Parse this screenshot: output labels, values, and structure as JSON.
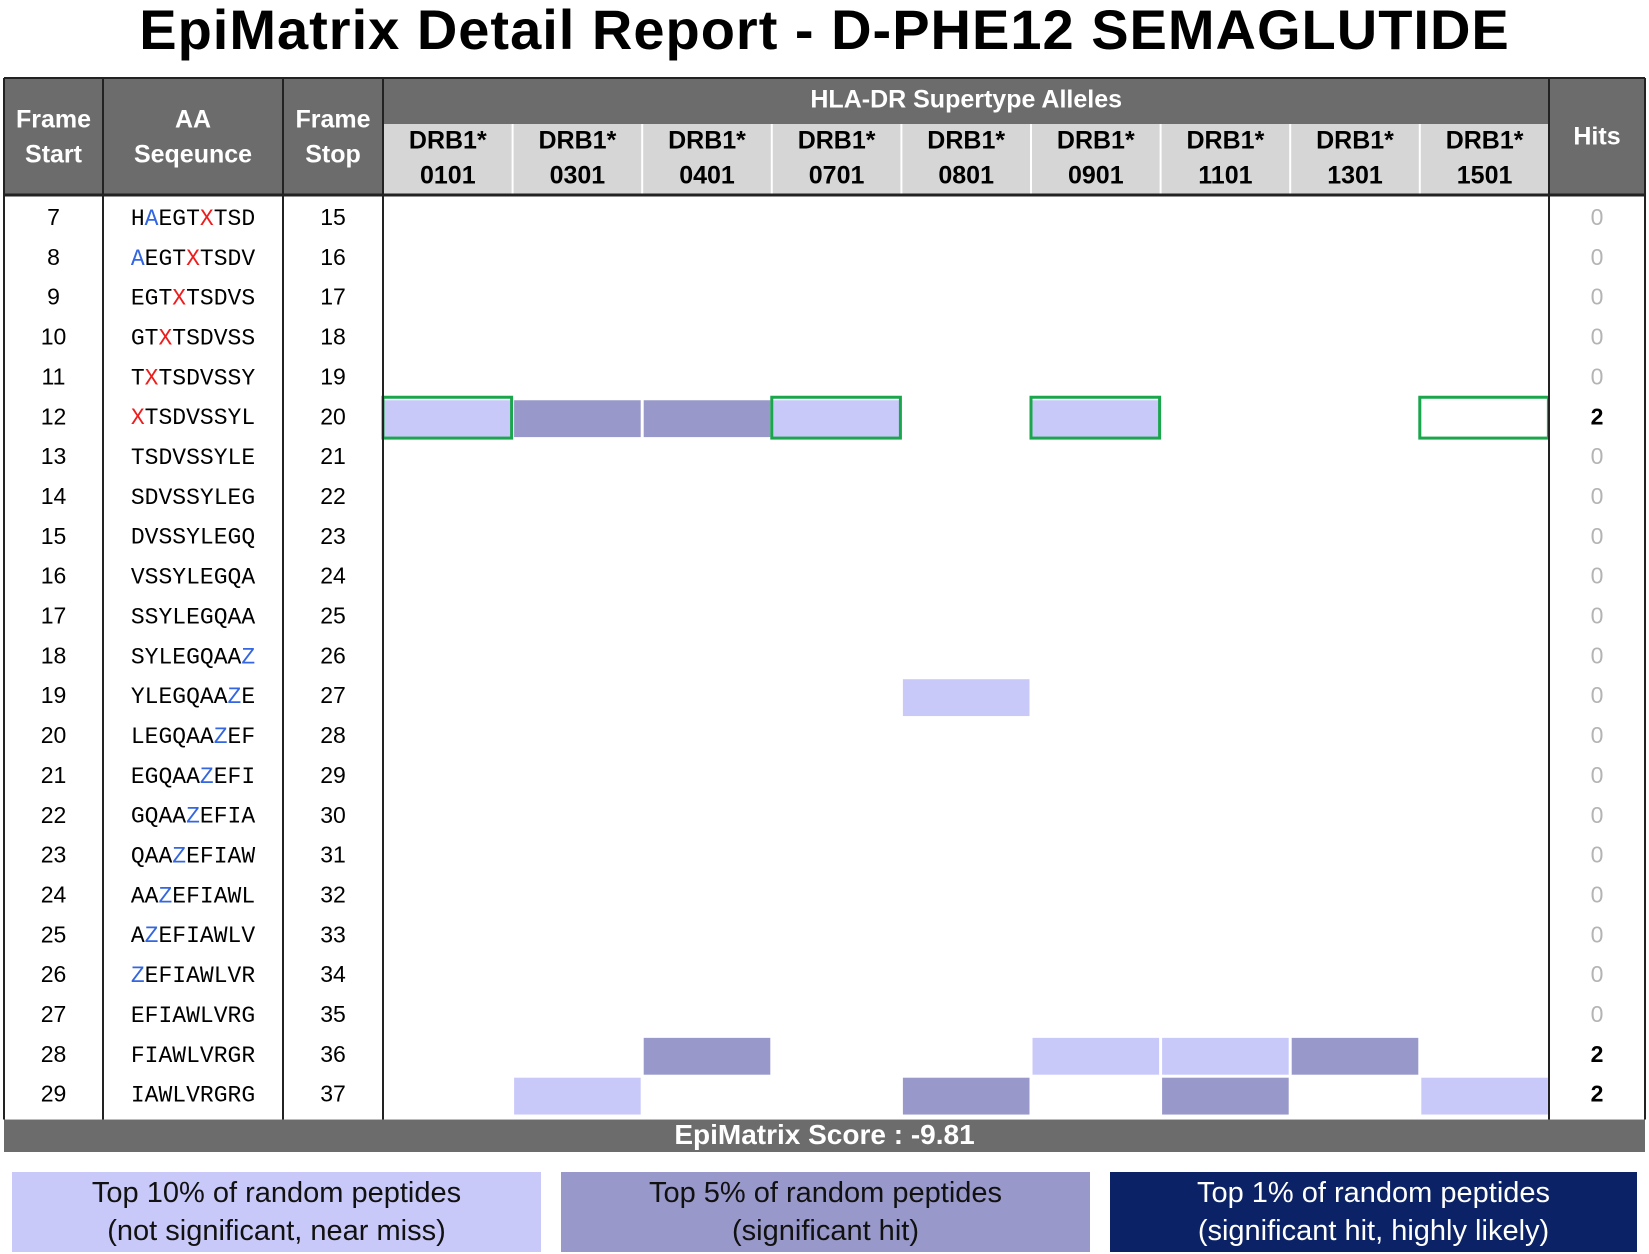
{
  "chart_data": {
    "type": "heatmap",
    "title": "EpiMatrix Detail Report  -  D-PHE12 SEMAGLUTIDE",
    "headers": {
      "frame_start": [
        "Frame",
        "Start"
      ],
      "aa_sequence": [
        "AA",
        "Seqeunce"
      ],
      "frame_stop": [
        "Frame",
        "Stop"
      ],
      "allele_group": "HLA-DR Supertype Alleles",
      "hits": "Hits"
    },
    "alleles": [
      {
        "top": "DRB1*",
        "bottom": "0101"
      },
      {
        "top": "DRB1*",
        "bottom": "0301"
      },
      {
        "top": "DRB1*",
        "bottom": "0401"
      },
      {
        "top": "DRB1*",
        "bottom": "0701"
      },
      {
        "top": "DRB1*",
        "bottom": "0801"
      },
      {
        "top": "DRB1*",
        "bottom": "0901"
      },
      {
        "top": "DRB1*",
        "bottom": "1101"
      },
      {
        "top": "DRB1*",
        "bottom": "1301"
      },
      {
        "top": "DRB1*",
        "bottom": "1501"
      }
    ],
    "level_colors": {
      "1": "#c9c9f9",
      "2": "#9898ca",
      "3": "#0b2366",
      "outline": "#1aa64b"
    },
    "rows": [
      {
        "start": "7",
        "sequence": "HAEGTXTSD",
        "stop": "15",
        "hits": "0",
        "cells": [
          0,
          0,
          0,
          0,
          0,
          0,
          0,
          0,
          0
        ],
        "outlined": []
      },
      {
        "start": "8",
        "sequence": "AEGTXTSDV",
        "stop": "16",
        "hits": "0",
        "cells": [
          0,
          0,
          0,
          0,
          0,
          0,
          0,
          0,
          0
        ],
        "outlined": []
      },
      {
        "start": "9",
        "sequence": "EGTXTSDVS",
        "stop": "17",
        "hits": "0",
        "cells": [
          0,
          0,
          0,
          0,
          0,
          0,
          0,
          0,
          0
        ],
        "outlined": []
      },
      {
        "start": "10",
        "sequence": "GTXTSDVSS",
        "stop": "18",
        "hits": "0",
        "cells": [
          0,
          0,
          0,
          0,
          0,
          0,
          0,
          0,
          0
        ],
        "outlined": []
      },
      {
        "start": "11",
        "sequence": "TXTSDVSSY",
        "stop": "19",
        "hits": "0",
        "cells": [
          0,
          0,
          0,
          0,
          0,
          0,
          0,
          0,
          0
        ],
        "outlined": []
      },
      {
        "start": "12",
        "sequence": "XTSDVSSYL",
        "stop": "20",
        "hits": "2",
        "cells": [
          1,
          2,
          2,
          1,
          0,
          1,
          0,
          0,
          0
        ],
        "outlined": [
          0,
          3,
          5,
          8
        ]
      },
      {
        "start": "13",
        "sequence": "TSDVSSYLE",
        "stop": "21",
        "hits": "0",
        "cells": [
          0,
          0,
          0,
          0,
          0,
          0,
          0,
          0,
          0
        ],
        "outlined": []
      },
      {
        "start": "14",
        "sequence": "SDVSSYLEG",
        "stop": "22",
        "hits": "0",
        "cells": [
          0,
          0,
          0,
          0,
          0,
          0,
          0,
          0,
          0
        ],
        "outlined": []
      },
      {
        "start": "15",
        "sequence": "DVSSYLEGQ",
        "stop": "23",
        "hits": "0",
        "cells": [
          0,
          0,
          0,
          0,
          0,
          0,
          0,
          0,
          0
        ],
        "outlined": []
      },
      {
        "start": "16",
        "sequence": "VSSYLEGQA",
        "stop": "24",
        "hits": "0",
        "cells": [
          0,
          0,
          0,
          0,
          0,
          0,
          0,
          0,
          0
        ],
        "outlined": []
      },
      {
        "start": "17",
        "sequence": "SSYLEGQAA",
        "stop": "25",
        "hits": "0",
        "cells": [
          0,
          0,
          0,
          0,
          0,
          0,
          0,
          0,
          0
        ],
        "outlined": []
      },
      {
        "start": "18",
        "sequence": "SYLEGQAAZ",
        "stop": "26",
        "hits": "0",
        "cells": [
          0,
          0,
          0,
          0,
          0,
          0,
          0,
          0,
          0
        ],
        "outlined": []
      },
      {
        "start": "19",
        "sequence": "YLEGQAAZE",
        "stop": "27",
        "hits": "0",
        "cells": [
          0,
          0,
          0,
          0,
          1,
          0,
          0,
          0,
          0
        ],
        "outlined": []
      },
      {
        "start": "20",
        "sequence": "LEGQAAZEF",
        "stop": "28",
        "hits": "0",
        "cells": [
          0,
          0,
          0,
          0,
          0,
          0,
          0,
          0,
          0
        ],
        "outlined": []
      },
      {
        "start": "21",
        "sequence": "EGQAAZEFI",
        "stop": "29",
        "hits": "0",
        "cells": [
          0,
          0,
          0,
          0,
          0,
          0,
          0,
          0,
          0
        ],
        "outlined": []
      },
      {
        "start": "22",
        "sequence": "GQAAZEFIA",
        "stop": "30",
        "hits": "0",
        "cells": [
          0,
          0,
          0,
          0,
          0,
          0,
          0,
          0,
          0
        ],
        "outlined": []
      },
      {
        "start": "23",
        "sequence": "QAAZEFIAW",
        "stop": "31",
        "hits": "0",
        "cells": [
          0,
          0,
          0,
          0,
          0,
          0,
          0,
          0,
          0
        ],
        "outlined": []
      },
      {
        "start": "24",
        "sequence": "AAZEFIAWL",
        "stop": "32",
        "hits": "0",
        "cells": [
          0,
          0,
          0,
          0,
          0,
          0,
          0,
          0,
          0
        ],
        "outlined": []
      },
      {
        "start": "25",
        "sequence": "AZEFIAWLV",
        "stop": "33",
        "hits": "0",
        "cells": [
          0,
          0,
          0,
          0,
          0,
          0,
          0,
          0,
          0
        ],
        "outlined": []
      },
      {
        "start": "26",
        "sequence": "ZEFIAWLVR",
        "stop": "34",
        "hits": "0",
        "cells": [
          0,
          0,
          0,
          0,
          0,
          0,
          0,
          0,
          0
        ],
        "outlined": []
      },
      {
        "start": "27",
        "sequence": "EFIAWLVRG",
        "stop": "35",
        "hits": "0",
        "cells": [
          0,
          0,
          0,
          0,
          0,
          0,
          0,
          0,
          0
        ],
        "outlined": []
      },
      {
        "start": "28",
        "sequence": "FIAWLVRGR",
        "stop": "36",
        "hits": "2",
        "cells": [
          0,
          0,
          2,
          0,
          0,
          1,
          1,
          2,
          0
        ],
        "outlined": []
      },
      {
        "start": "29",
        "sequence": "IAWLVRGRG",
        "stop": "37",
        "hits": "2",
        "cells": [
          0,
          1,
          0,
          0,
          2,
          0,
          2,
          0,
          1
        ],
        "outlined": []
      }
    ],
    "highlight_colors": {
      "X": "#ee1c1c",
      "Z": "#3366e0",
      "A_pos2": "#3366e0"
    },
    "highlights": [
      {
        "row": 0,
        "pos": 1,
        "color": "#3366e0"
      },
      {
        "row": 0,
        "pos": 5,
        "color": "#ee1c1c"
      },
      {
        "row": 1,
        "pos": 0,
        "color": "#3366e0"
      },
      {
        "row": 1,
        "pos": 4,
        "color": "#ee1c1c"
      },
      {
        "row": 2,
        "pos": 3,
        "color": "#ee1c1c"
      },
      {
        "row": 3,
        "pos": 2,
        "color": "#ee1c1c"
      },
      {
        "row": 4,
        "pos": 1,
        "color": "#ee1c1c"
      },
      {
        "row": 5,
        "pos": 0,
        "color": "#ee1c1c"
      },
      {
        "row": 11,
        "pos": 8,
        "color": "#3366e0"
      },
      {
        "row": 12,
        "pos": 7,
        "color": "#3366e0"
      },
      {
        "row": 13,
        "pos": 6,
        "color": "#3366e0"
      },
      {
        "row": 14,
        "pos": 5,
        "color": "#3366e0"
      },
      {
        "row": 15,
        "pos": 4,
        "color": "#3366e0"
      },
      {
        "row": 16,
        "pos": 3,
        "color": "#3366e0"
      },
      {
        "row": 17,
        "pos": 2,
        "color": "#3366e0"
      },
      {
        "row": 18,
        "pos": 1,
        "color": "#3366e0"
      },
      {
        "row": 19,
        "pos": 0,
        "color": "#3366e0"
      }
    ],
    "score_label": "EpiMatrix Score :  -9.81",
    "legend": [
      {
        "line1": "Top 10% of random peptides",
        "line2": "(not significant, near miss)",
        "bg": "#c9c9f9",
        "fg": "#111111"
      },
      {
        "line1": "Top 5% of random peptides",
        "line2": "(significant hit)",
        "bg": "#9898ca",
        "fg": "#111111"
      },
      {
        "line1": "Top 1% of random peptides",
        "line2": "(significant hit, highly likely)",
        "bg": "#0b2366",
        "fg": "#ffffff"
      }
    ]
  }
}
